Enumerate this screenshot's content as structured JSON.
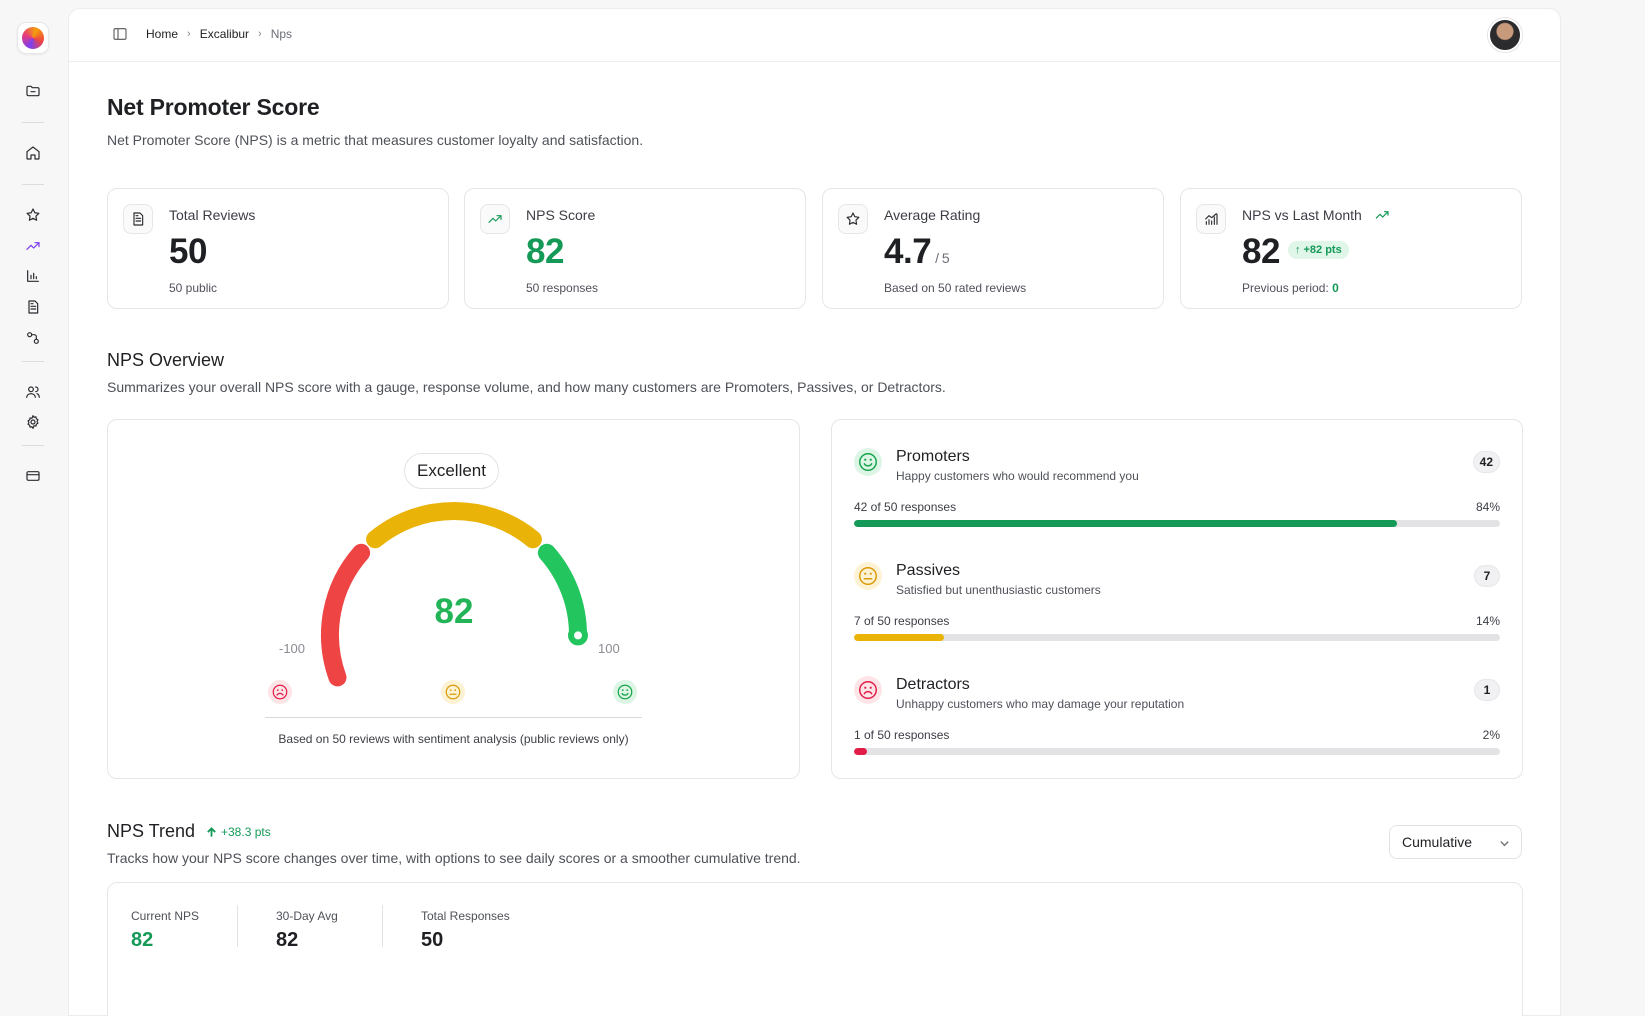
{
  "breadcrumb": [
    "Home",
    "Excalibur",
    "Nps"
  ],
  "page": {
    "title": "Net Promoter Score",
    "subtitle": "Net Promoter Score (NPS) is a metric that measures customer loyalty and satisfaction."
  },
  "kpis": {
    "total_reviews": {
      "label": "Total Reviews",
      "value": "50",
      "sub": "50 public",
      "icon": "document-icon"
    },
    "nps_score": {
      "label": "NPS Score",
      "value": "82",
      "sub": "50 responses",
      "icon": "trending-up-icon"
    },
    "avg_rating": {
      "label": "Average Rating",
      "value": "4.7",
      "of": "/ 5",
      "sub": "Based on 50 rated reviews",
      "icon": "star-icon"
    },
    "vs_last_month": {
      "label": "NPS vs Last Month",
      "value": "82",
      "delta": "↑ +82 pts",
      "sub_prefix": "Previous period:",
      "sub_value": "0",
      "icon": "signal-chart-icon"
    }
  },
  "overview": {
    "title": "NPS Overview",
    "subtitle": "Summarizes your overall NPS score with a gauge, response volume, and how many customers are Promoters, Passives, or Detractors.",
    "gauge": {
      "rating": "Excellent",
      "value": "82",
      "score": 82,
      "min": "-100",
      "max": "100",
      "note": "Based on 50 reviews with sentiment analysis (public reviews only)"
    },
    "segments": [
      {
        "name": "Promoters",
        "desc": "Happy customers who would recommend you",
        "count": "42",
        "responses": "42 of 50 responses",
        "pct": "84%",
        "fraction": 0.84,
        "color": "#159957",
        "icon": "smile-face-icon"
      },
      {
        "name": "Passives",
        "desc": "Satisfied but unenthusiastic customers",
        "count": "7",
        "responses": "7 of 50 responses",
        "pct": "14%",
        "fraction": 0.14,
        "color": "#eab308",
        "icon": "neutral-face-icon"
      },
      {
        "name": "Detractors",
        "desc": "Unhappy customers who may damage your reputation",
        "count": "1",
        "responses": "1 of 50 responses",
        "pct": "2%",
        "fraction": 0.02,
        "color": "#e11d48",
        "icon": "frown-face-icon"
      }
    ]
  },
  "trend": {
    "title": "NPS Trend",
    "delta": "+38.3 pts",
    "subtitle": "Tracks how your NPS score changes over time, with options to see daily scores or a smoother cumulative trend.",
    "mode": "Cumulative",
    "stats": [
      {
        "label": "Current NPS",
        "value": "82"
      },
      {
        "label": "30-Day Avg",
        "value": "82"
      },
      {
        "label": "Total Responses",
        "value": "50"
      }
    ]
  },
  "colors": {
    "accent": "#7c3aed",
    "positive": "#159957",
    "gauge_red": "#ef4444",
    "gauge_yellow": "#eab308",
    "gauge_green": "#22c55e"
  }
}
